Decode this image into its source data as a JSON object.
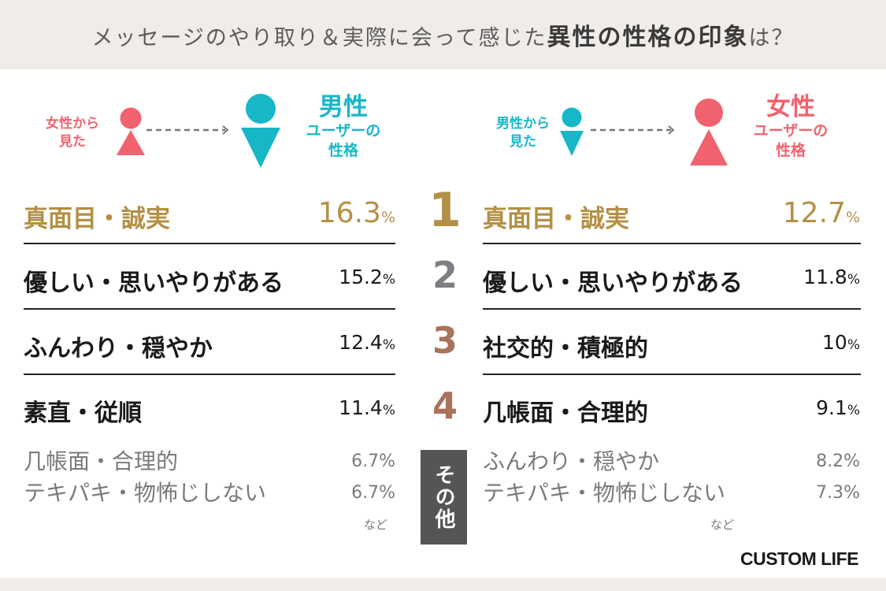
{
  "header": {
    "title_plain": "メッセージのやり取り＆実際に会って感じた",
    "title_bold": "異性の性格の印象",
    "title_tail": "は？"
  },
  "left_diagram": {
    "viewer_label_line1": "女性から",
    "viewer_label_line2": "見た",
    "target_label_line1": "男性",
    "target_label_line2": "ユーザーの",
    "target_label_line3": "性格"
  },
  "right_diagram": {
    "viewer_label_line1": "男性から",
    "viewer_label_line2": "見た",
    "target_label_line1": "女性",
    "target_label_line2": "ユーザーの",
    "target_label_line3": "性格"
  },
  "ranks": [
    {
      "rank": "1",
      "left": {
        "trait": "真面目・誠実",
        "value": "16.3",
        "unit": "%"
      },
      "right": {
        "trait": "真面目・誠実",
        "value": "12.7",
        "unit": "%"
      }
    },
    {
      "rank": "2",
      "left": {
        "trait": "優しい・思いやりがある",
        "value": "15.2",
        "unit": "%"
      },
      "right": {
        "trait": "優しい・思いやりがある",
        "value": "11.8",
        "unit": "%"
      }
    },
    {
      "rank": "3",
      "left": {
        "trait": "ふんわり・穏やか",
        "value": "12.4",
        "unit": "%"
      },
      "right": {
        "trait": "社交的・積極的",
        "value": "10",
        "unit": "%"
      }
    },
    {
      "rank": "4",
      "left": {
        "trait": "素直・従順",
        "value": "11.4",
        "unit": "%"
      },
      "right": {
        "trait": "几帳面・合理的",
        "value": "9.1",
        "unit": "%"
      }
    }
  ],
  "others": {
    "label": "その他",
    "left": [
      {
        "trait": "几帳面・合理的",
        "value": "6.7%"
      },
      {
        "trait": "テキパキ・物怖じしない",
        "value": "6.7%"
      }
    ],
    "right": [
      {
        "trait": "ふんわり・穏やか",
        "value": "8.2%"
      },
      {
        "trait": "テキパキ・物怖じしない",
        "value": "7.3%"
      }
    ],
    "etc_label": "など"
  },
  "brand": "CUSTOM LIFE",
  "colors": {
    "female": "#f0636e",
    "male": "#17b7c8",
    "rank1": "#b39045",
    "rank2": "#7e7e84",
    "rank3_4": "#a9725d"
  }
}
